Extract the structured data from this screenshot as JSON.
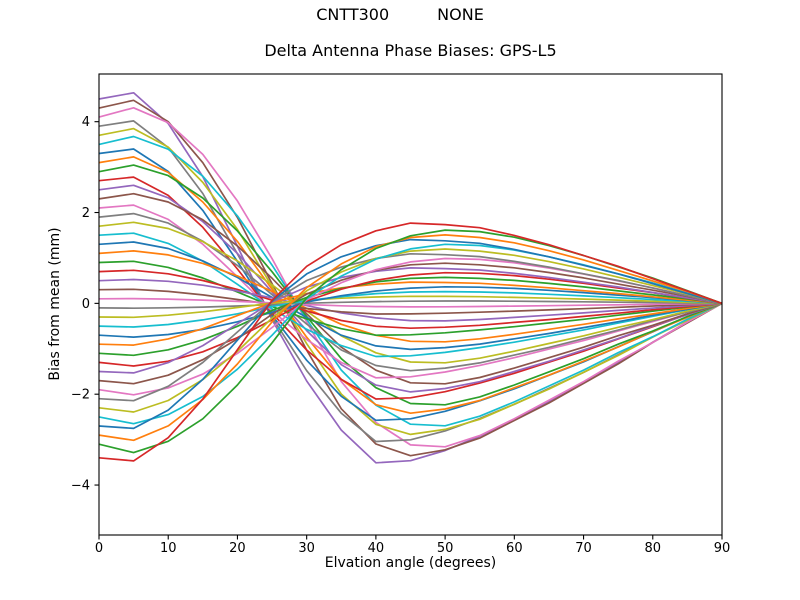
{
  "suptitle": {
    "left": "CNTT300",
    "right": "NONE"
  },
  "chart_data": {
    "type": "line",
    "title": "Delta Antenna Phase Biases: GPS-L5",
    "xlabel": "Elvation angle (degrees)",
    "ylabel": "Bias from mean (mm)",
    "xlim": [
      0,
      90
    ],
    "ylim": [
      -5.1,
      5.05
    ],
    "xticks": [
      0,
      10,
      20,
      30,
      40,
      50,
      60,
      70,
      80,
      90
    ],
    "xtick_labels": [
      "0",
      "10",
      "20",
      "30",
      "40",
      "50",
      "60",
      "70",
      "80",
      "90"
    ],
    "yticks": [
      -4,
      -2,
      0,
      2,
      4
    ],
    "ytick_labels": [
      "−4",
      "−2",
      "0",
      "2",
      "4"
    ],
    "grid": false,
    "legend": false,
    "line_width": 1.7,
    "axis_color": "#000000",
    "background": "#ffffff",
    "palette": [
      "#1f77b4",
      "#ff7f0e",
      "#2ca02c",
      "#d62728",
      "#9467bd",
      "#8c564b",
      "#e377c2",
      "#7f7f7f",
      "#bcbd22",
      "#17becf"
    ],
    "x": [
      0,
      5,
      10,
      15,
      20,
      25,
      30,
      35,
      40,
      45,
      50,
      55,
      60,
      65,
      70,
      75,
      80,
      85,
      90
    ],
    "profiles": {
      "pa": [
        1.0,
        1.03,
        0.88,
        0.62,
        0.28,
        -0.08,
        -0.38,
        -0.62,
        -0.78,
        -0.77,
        -0.72,
        -0.65,
        -0.57,
        -0.48,
        -0.39,
        -0.29,
        -0.19,
        -0.09,
        0
      ],
      "pb": [
        1.0,
        1.04,
        0.93,
        0.72,
        0.44,
        0.1,
        -0.24,
        -0.54,
        -0.72,
        -0.78,
        -0.75,
        -0.69,
        -0.6,
        -0.51,
        -0.41,
        -0.31,
        -0.2,
        -0.1,
        0
      ],
      "pc": [
        1.0,
        1.05,
        0.97,
        0.8,
        0.55,
        0.24,
        -0.1,
        -0.42,
        -0.64,
        -0.76,
        -0.77,
        -0.71,
        -0.62,
        -0.52,
        -0.42,
        -0.31,
        -0.21,
        -0.1,
        0
      ],
      "qa": [
        1.0,
        1.02,
        0.87,
        0.62,
        0.3,
        -0.02,
        -0.24,
        -0.38,
        -0.47,
        -0.52,
        -0.51,
        -0.49,
        -0.44,
        -0.38,
        -0.31,
        -0.24,
        -0.16,
        -0.08,
        0
      ],
      "qb": [
        1.0,
        1.04,
        0.93,
        0.73,
        0.46,
        0.14,
        -0.12,
        -0.3,
        -0.43,
        -0.5,
        -0.52,
        -0.5,
        -0.46,
        -0.4,
        -0.33,
        -0.25,
        -0.17,
        -0.09,
        0
      ],
      "qc": [
        1.0,
        1.06,
        0.98,
        0.82,
        0.58,
        0.28,
        -0.04,
        -0.24,
        -0.39,
        -0.48,
        -0.52,
        -0.51,
        -0.47,
        -0.41,
        -0.34,
        -0.26,
        -0.18,
        -0.09,
        0
      ]
    },
    "series": [
      {
        "amplitude": 4.5,
        "profile": "pa",
        "color": "#9467bd"
      },
      {
        "amplitude": 4.3,
        "profile": "pb",
        "color": "#8c564b"
      },
      {
        "amplitude": 4.1,
        "profile": "pc",
        "color": "#e377c2"
      },
      {
        "amplitude": 3.9,
        "profile": "pa",
        "color": "#7f7f7f"
      },
      {
        "amplitude": 3.7,
        "profile": "pb",
        "color": "#bcbd22"
      },
      {
        "amplitude": 3.5,
        "profile": "pc",
        "color": "#17becf"
      },
      {
        "amplitude": 3.3,
        "profile": "pa",
        "color": "#1f77b4"
      },
      {
        "amplitude": 3.1,
        "profile": "pb",
        "color": "#ff7f0e"
      },
      {
        "amplitude": 2.9,
        "profile": "pc",
        "color": "#2ca02c"
      },
      {
        "amplitude": 2.7,
        "profile": "pa",
        "color": "#d62728"
      },
      {
        "amplitude": 2.5,
        "profile": "pb",
        "color": "#9467bd"
      },
      {
        "amplitude": 2.3,
        "profile": "pc",
        "color": "#8c564b"
      },
      {
        "amplitude": 2.1,
        "profile": "pa",
        "color": "#e377c2"
      },
      {
        "amplitude": 1.9,
        "profile": "pb",
        "color": "#7f7f7f"
      },
      {
        "amplitude": 1.7,
        "profile": "pc",
        "color": "#bcbd22"
      },
      {
        "amplitude": 1.5,
        "profile": "pa",
        "color": "#17becf"
      },
      {
        "amplitude": 1.3,
        "profile": "pb",
        "color": "#1f77b4"
      },
      {
        "amplitude": 1.1,
        "profile": "pc",
        "color": "#ff7f0e"
      },
      {
        "amplitude": 0.9,
        "profile": "pa",
        "color": "#2ca02c"
      },
      {
        "amplitude": 0.7,
        "profile": "pb",
        "color": "#d62728"
      },
      {
        "amplitude": 0.5,
        "profile": "pc",
        "color": "#9467bd"
      },
      {
        "amplitude": 0.3,
        "profile": "pa",
        "color": "#8c564b"
      },
      {
        "amplitude": 0.1,
        "profile": "pb",
        "color": "#e377c2"
      },
      {
        "amplitude": -0.1,
        "profile": "qc",
        "color": "#7f7f7f"
      },
      {
        "amplitude": -0.3,
        "profile": "qa",
        "color": "#bcbd22"
      },
      {
        "amplitude": -0.5,
        "profile": "qb",
        "color": "#17becf"
      },
      {
        "amplitude": -0.7,
        "profile": "qc",
        "color": "#1f77b4"
      },
      {
        "amplitude": -0.9,
        "profile": "qa",
        "color": "#ff7f0e"
      },
      {
        "amplitude": -1.1,
        "profile": "qb",
        "color": "#2ca02c"
      },
      {
        "amplitude": -1.3,
        "profile": "qc",
        "color": "#d62728"
      },
      {
        "amplitude": -1.5,
        "profile": "qa",
        "color": "#9467bd"
      },
      {
        "amplitude": -1.7,
        "profile": "qb",
        "color": "#8c564b"
      },
      {
        "amplitude": -1.9,
        "profile": "qc",
        "color": "#e377c2"
      },
      {
        "amplitude": -2.1,
        "profile": "qa",
        "color": "#7f7f7f"
      },
      {
        "amplitude": -2.3,
        "profile": "qb",
        "color": "#bcbd22"
      },
      {
        "amplitude": -2.5,
        "profile": "qc",
        "color": "#17becf"
      },
      {
        "amplitude": -2.7,
        "profile": "qa",
        "color": "#1f77b4"
      },
      {
        "amplitude": -2.9,
        "profile": "qb",
        "color": "#ff7f0e"
      },
      {
        "amplitude": -3.1,
        "profile": "qc",
        "color": "#2ca02c"
      },
      {
        "amplitude": -3.4,
        "profile": "qa",
        "color": "#d62728"
      }
    ]
  }
}
